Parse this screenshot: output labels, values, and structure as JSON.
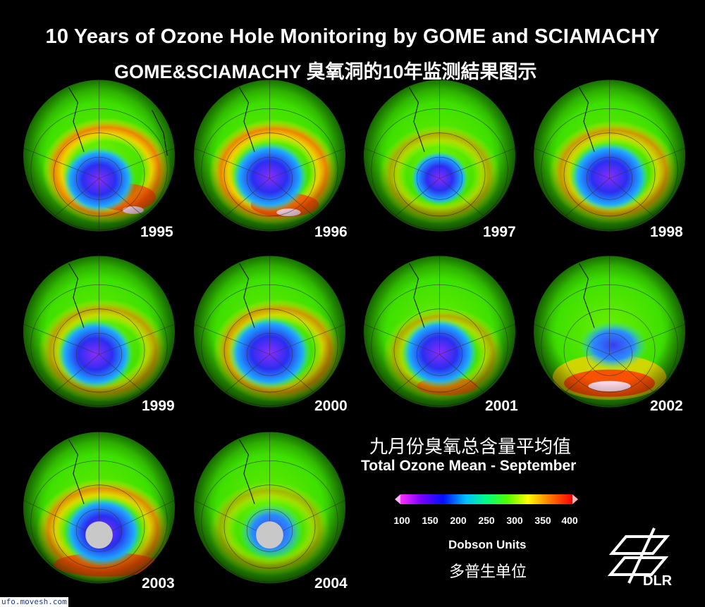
{
  "title_en": "10 Years of Ozone Hole Monitoring by GOME and SCIAMACHY",
  "title_cn": "GOME&SCIAMACHY 臭氧洞的10年监测結果图示",
  "globes": [
    {
      "year": "1995"
    },
    {
      "year": "1996"
    },
    {
      "year": "1997"
    },
    {
      "year": "1998"
    },
    {
      "year": "1999"
    },
    {
      "year": "2000"
    },
    {
      "year": "2001"
    },
    {
      "year": "2002"
    },
    {
      "year": "2003"
    },
    {
      "year": "2004"
    }
  ],
  "legend": {
    "title_cn": "九月份臭氧总含量平均值",
    "title_en": "Total Ozone Mean - September",
    "ticks": [
      "100",
      "150",
      "200",
      "250",
      "300",
      "350",
      "400"
    ],
    "unit_en": "Dobson Units",
    "unit_cn": "多普生单位"
  },
  "logo_text": "DLR",
  "watermark": "ufo.movesh.com"
}
